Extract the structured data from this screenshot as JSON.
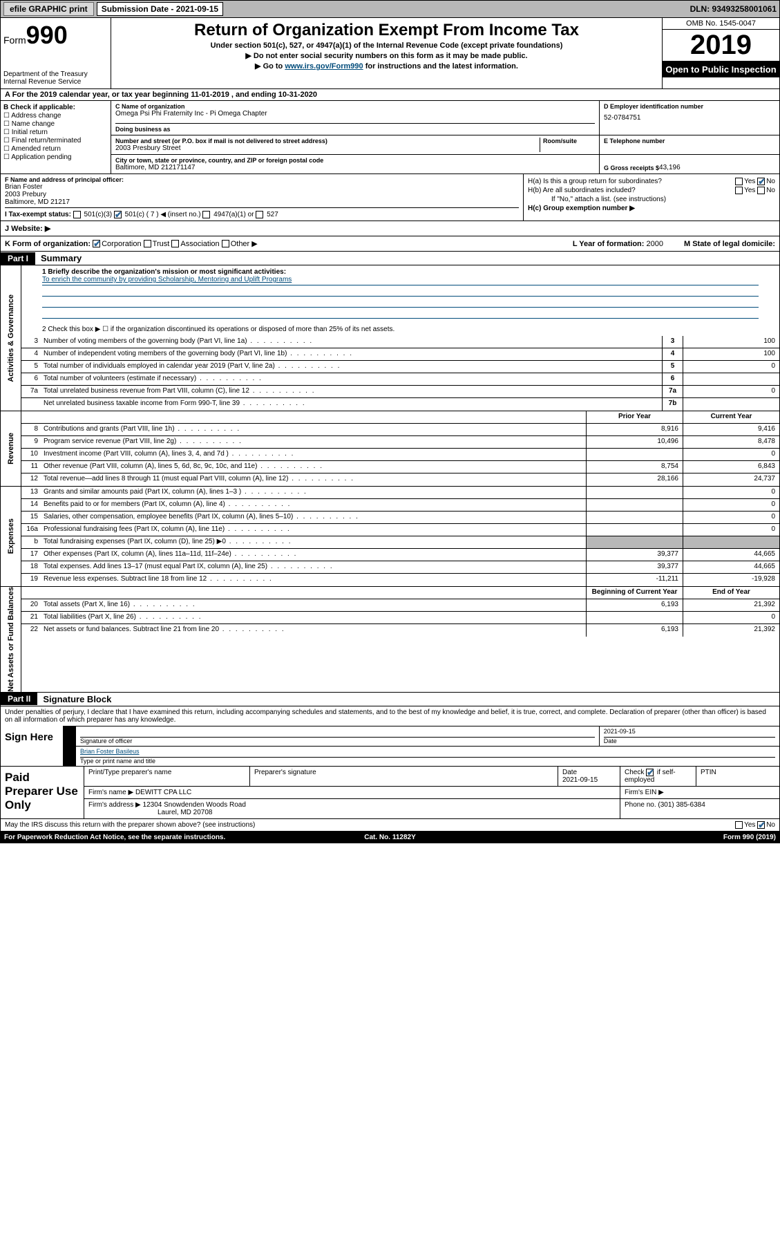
{
  "topbar": {
    "efile": "efile GRAPHIC print",
    "sub_label": "Submission Date - 2021-09-15",
    "dln": "DLN: 93493258001061"
  },
  "header": {
    "form_label": "Form",
    "form_number": "990",
    "dept": "Department of the Treasury",
    "irs": "Internal Revenue Service",
    "title": "Return of Organization Exempt From Income Tax",
    "subtitle": "Under section 501(c), 527, or 4947(a)(1) of the Internal Revenue Code (except private foundations)",
    "nossn": "▶ Do not enter social security numbers on this form as it may be made public.",
    "goto_pre": "▶ Go to ",
    "goto_link": "www.irs.gov/Form990",
    "goto_post": " for instructions and the latest information.",
    "omb": "OMB No. 1545-0047",
    "year": "2019",
    "otp": "Open to Public Inspection"
  },
  "period": {
    "text_a": "A For the 2019 calendar year, or tax year beginning 11-01-2019    , and ending 10-31-2020"
  },
  "B": {
    "header": "B Check if applicable:",
    "items": [
      "Address change",
      "Name change",
      "Initial return",
      "Final return/terminated",
      "Amended return",
      "Application pending"
    ]
  },
  "C": {
    "name_lbl": "C Name of organization",
    "name_val": "Omega Psi Phi Fraternity Inc - Pi Omega Chapter",
    "dba_lbl": "Doing business as",
    "dba_val": "",
    "street_lbl": "Number and street (or P.O. box if mail is not delivered to street address)",
    "room_lbl": "Room/suite",
    "street_val": "2003 Presbury Street",
    "city_lbl": "City or town, state or province, country, and ZIP or foreign postal code",
    "city_val": "Baltimore, MD  212171147"
  },
  "D": {
    "lbl": "D Employer identification number",
    "val": "52-0784751"
  },
  "E": {
    "lbl": "E Telephone number",
    "val": ""
  },
  "G": {
    "lbl": "G Gross receipts $ ",
    "val": "43,196"
  },
  "F": {
    "lbl": "F  Name and address of principal officer:",
    "name": "Brian Foster",
    "addr1": "2003 Prebury",
    "addr2": "Baltimore, MD  21217"
  },
  "H": {
    "a": "H(a)  Is this a group return for subordinates?",
    "b": "H(b)  Are all subordinates included?",
    "b_note": "If \"No,\" attach a list. (see instructions)",
    "c": "H(c)  Group exemption number ▶"
  },
  "I": {
    "lbl": "I    Tax-exempt status:",
    "opts": [
      "501(c)(3)",
      "501(c) ( 7 ) ◀ (insert no.)",
      "4947(a)(1) or",
      "527"
    ]
  },
  "J": {
    "lbl": "J    Website: ▶"
  },
  "K": {
    "lbl": "K Form of organization:",
    "opts": [
      "Corporation",
      "Trust",
      "Association",
      "Other ▶"
    ],
    "L_lbl": "L Year of formation: ",
    "L_val": "2000",
    "M_lbl": "M State of legal domicile:"
  },
  "part1": {
    "header": "Part I",
    "title": "Summary",
    "sections": {
      "gov": "Activities & Governance",
      "rev": "Revenue",
      "exp": "Expenses",
      "net": "Net Assets or Fund Balances"
    },
    "l1": "1  Briefly describe the organization's mission or most significant activities:",
    "mission": "To enrich the community by providing Scholarship, Mentoring and Uplift Programs",
    "l2": "2    Check this box ▶ ☐  if the organization discontinued its operations or disposed of more than 25% of its net assets.",
    "lines_top": [
      {
        "n": "3",
        "d": "Number of voting members of the governing body (Part VI, line 1a)",
        "box": "3",
        "v": "100"
      },
      {
        "n": "4",
        "d": "Number of independent voting members of the governing body (Part VI, line 1b)",
        "box": "4",
        "v": "100"
      },
      {
        "n": "5",
        "d": "Total number of individuals employed in calendar year 2019 (Part V, line 2a)",
        "box": "5",
        "v": "0"
      },
      {
        "n": "6",
        "d": "Total number of volunteers (estimate if necessary)",
        "box": "6",
        "v": ""
      },
      {
        "n": "7a",
        "d": "Total unrelated business revenue from Part VIII, column (C), line 12",
        "box": "7a",
        "v": "0"
      },
      {
        "n": "",
        "d": "Net unrelated business taxable income from Form 990-T, line 39",
        "box": "7b",
        "v": ""
      }
    ],
    "col_headers": {
      "prior": "Prior Year",
      "current": "Current Year",
      "boc": "Beginning of Current Year",
      "eoy": "End of Year"
    },
    "revenue": [
      {
        "n": "8",
        "d": "Contributions and grants (Part VIII, line 1h)",
        "p": "8,916",
        "c": "9,416"
      },
      {
        "n": "9",
        "d": "Program service revenue (Part VIII, line 2g)",
        "p": "10,496",
        "c": "8,478"
      },
      {
        "n": "10",
        "d": "Investment income (Part VIII, column (A), lines 3, 4, and 7d )",
        "p": "",
        "c": "0"
      },
      {
        "n": "11",
        "d": "Other revenue (Part VIII, column (A), lines 5, 6d, 8c, 9c, 10c, and 11e)",
        "p": "8,754",
        "c": "6,843"
      },
      {
        "n": "12",
        "d": "Total revenue—add lines 8 through 11 (must equal Part VIII, column (A), line 12)",
        "p": "28,166",
        "c": "24,737"
      }
    ],
    "expenses": [
      {
        "n": "13",
        "d": "Grants and similar amounts paid (Part IX, column (A), lines 1–3 )",
        "p": "",
        "c": "0"
      },
      {
        "n": "14",
        "d": "Benefits paid to or for members (Part IX, column (A), line 4)",
        "p": "",
        "c": "0"
      },
      {
        "n": "15",
        "d": "Salaries, other compensation, employee benefits (Part IX, column (A), lines 5–10)",
        "p": "",
        "c": "0"
      },
      {
        "n": "16a",
        "d": "Professional fundraising fees (Part IX, column (A), line 11e)",
        "p": "",
        "c": "0"
      },
      {
        "n": "b",
        "d": "Total fundraising expenses (Part IX, column (D), line 25) ▶0",
        "p": "shade",
        "c": "shade"
      },
      {
        "n": "17",
        "d": "Other expenses (Part IX, column (A), lines 11a–11d, 11f–24e)",
        "p": "39,377",
        "c": "44,665"
      },
      {
        "n": "18",
        "d": "Total expenses. Add lines 13–17 (must equal Part IX, column (A), line 25)",
        "p": "39,377",
        "c": "44,665"
      },
      {
        "n": "19",
        "d": "Revenue less expenses. Subtract line 18 from line 12",
        "p": "-11,211",
        "c": "-19,928"
      }
    ],
    "netassets": [
      {
        "n": "20",
        "d": "Total assets (Part X, line 16)",
        "p": "6,193",
        "c": "21,392"
      },
      {
        "n": "21",
        "d": "Total liabilities (Part X, line 26)",
        "p": "",
        "c": "0"
      },
      {
        "n": "22",
        "d": "Net assets or fund balances. Subtract line 21 from line 20",
        "p": "6,193",
        "c": "21,392"
      }
    ]
  },
  "part2": {
    "header": "Part II",
    "title": "Signature Block",
    "pen": "Under penalties of perjury, I declare that I have examined this return, including accompanying schedules and statements, and to the best of my knowledge and belief, it is true, correct, and complete. Declaration of preparer (other than officer) is based on all information of which preparer has any knowledge.",
    "sign_here": "Sign Here",
    "sig_lbl": "Signature of officer",
    "date_lbl": "Date",
    "date_val": "2021-09-15",
    "name_val": "Brian Foster  Basileus",
    "name_lbl": "Type or print name and title"
  },
  "prep": {
    "title": "Paid Preparer Use Only",
    "h1": "Print/Type preparer's name",
    "h2": "Preparer's signature",
    "h3": "Date",
    "h4": "Check ☑ if self-employed",
    "h5": "PTIN",
    "date": "2021-09-15",
    "firm_name_lbl": "Firm's name    ▶",
    "firm_name": "DEWITT CPA LLC",
    "firm_ein_lbl": "Firm's EIN ▶",
    "firm_addr_lbl": "Firm's address ▶",
    "firm_addr1": "12304 Snowdenden Woods Road",
    "firm_addr2": "Laurel, MD  20708",
    "phone_lbl": "Phone no. ",
    "phone": "(301) 385-6384"
  },
  "footer": {
    "discuss": "May the IRS discuss this return with the preparer shown above? (see instructions)",
    "pra": "For Paperwork Reduction Act Notice, see the separate instructions.",
    "cat": "Cat. No. 11282Y",
    "form": "Form 990 (2019)"
  },
  "colors": {
    "link": "#004b7a",
    "shade": "#b8b8b8"
  }
}
